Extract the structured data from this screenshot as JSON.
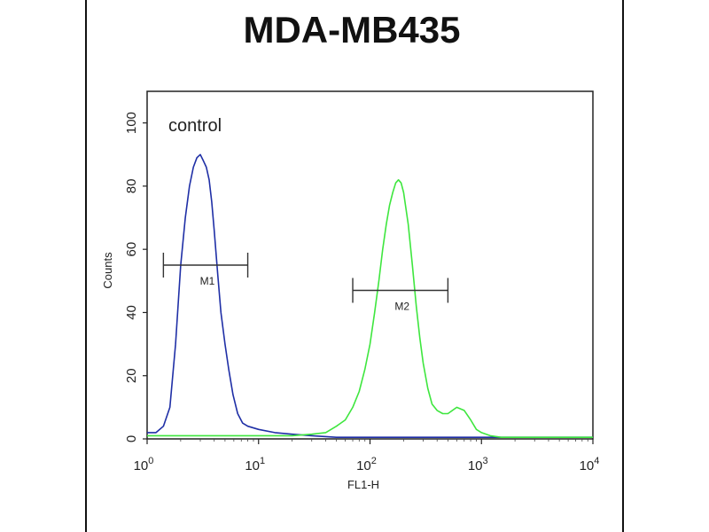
{
  "chart_data": {
    "type": "line",
    "title": "MDA-MB435",
    "xlabel": "FL1-H",
    "ylabel": "Counts",
    "xscale": "log",
    "xlim": [
      1,
      10000
    ],
    "ylim": [
      0,
      110
    ],
    "x_ticks": [
      {
        "base": "10",
        "exp": "0"
      },
      {
        "base": "10",
        "exp": "1"
      },
      {
        "base": "10",
        "exp": "2"
      },
      {
        "base": "10",
        "exp": "3"
      },
      {
        "base": "10",
        "exp": "4"
      }
    ],
    "y_ticks": [
      "0",
      "20",
      "40",
      "60",
      "80",
      "100"
    ],
    "annotation": "control",
    "markers": [
      {
        "label": "M1",
        "range": [
          1.4,
          8
        ]
      },
      {
        "label": "M2",
        "range": [
          70,
          500
        ]
      }
    ],
    "series": [
      {
        "color": "#1f2fa6",
        "x": [
          1,
          1.2,
          1.4,
          1.6,
          1.8,
          2.0,
          2.2,
          2.4,
          2.6,
          2.8,
          3.0,
          3.2,
          3.4,
          3.6,
          3.8,
          4.0,
          4.3,
          4.6,
          5.0,
          5.4,
          5.9,
          6.5,
          7.2,
          8,
          10,
          14,
          20,
          30,
          50,
          100,
          200,
          500,
          1000,
          3000,
          10000
        ],
        "y": [
          2,
          2,
          4,
          10,
          30,
          55,
          70,
          80,
          86,
          89,
          90,
          88,
          86,
          82,
          75,
          66,
          52,
          40,
          30,
          22,
          14,
          8,
          5,
          4,
          3,
          2,
          1.5,
          1,
          0.5,
          0.5,
          0.5,
          0.5,
          0.5,
          0.5,
          0.5
        ]
      },
      {
        "color": "#3ee63e",
        "x": [
          1,
          10,
          20,
          30,
          40,
          50,
          60,
          70,
          80,
          90,
          100,
          110,
          120,
          130,
          140,
          150,
          160,
          170,
          180,
          190,
          200,
          220,
          240,
          260,
          280,
          300,
          330,
          360,
          400,
          450,
          500,
          600,
          700,
          800,
          900,
          1000,
          1200,
          1500,
          2000,
          3000,
          5000,
          10000
        ],
        "y": [
          1,
          1,
          1,
          1.5,
          2,
          4,
          6,
          10,
          15,
          22,
          30,
          40,
          50,
          60,
          68,
          74,
          78,
          81,
          82,
          81,
          78,
          68,
          55,
          42,
          32,
          24,
          16,
          11,
          9,
          8,
          8,
          10,
          9,
          6,
          3,
          2,
          1,
          0.5,
          0.5,
          0.5,
          0.5,
          0.5
        ]
      }
    ]
  }
}
